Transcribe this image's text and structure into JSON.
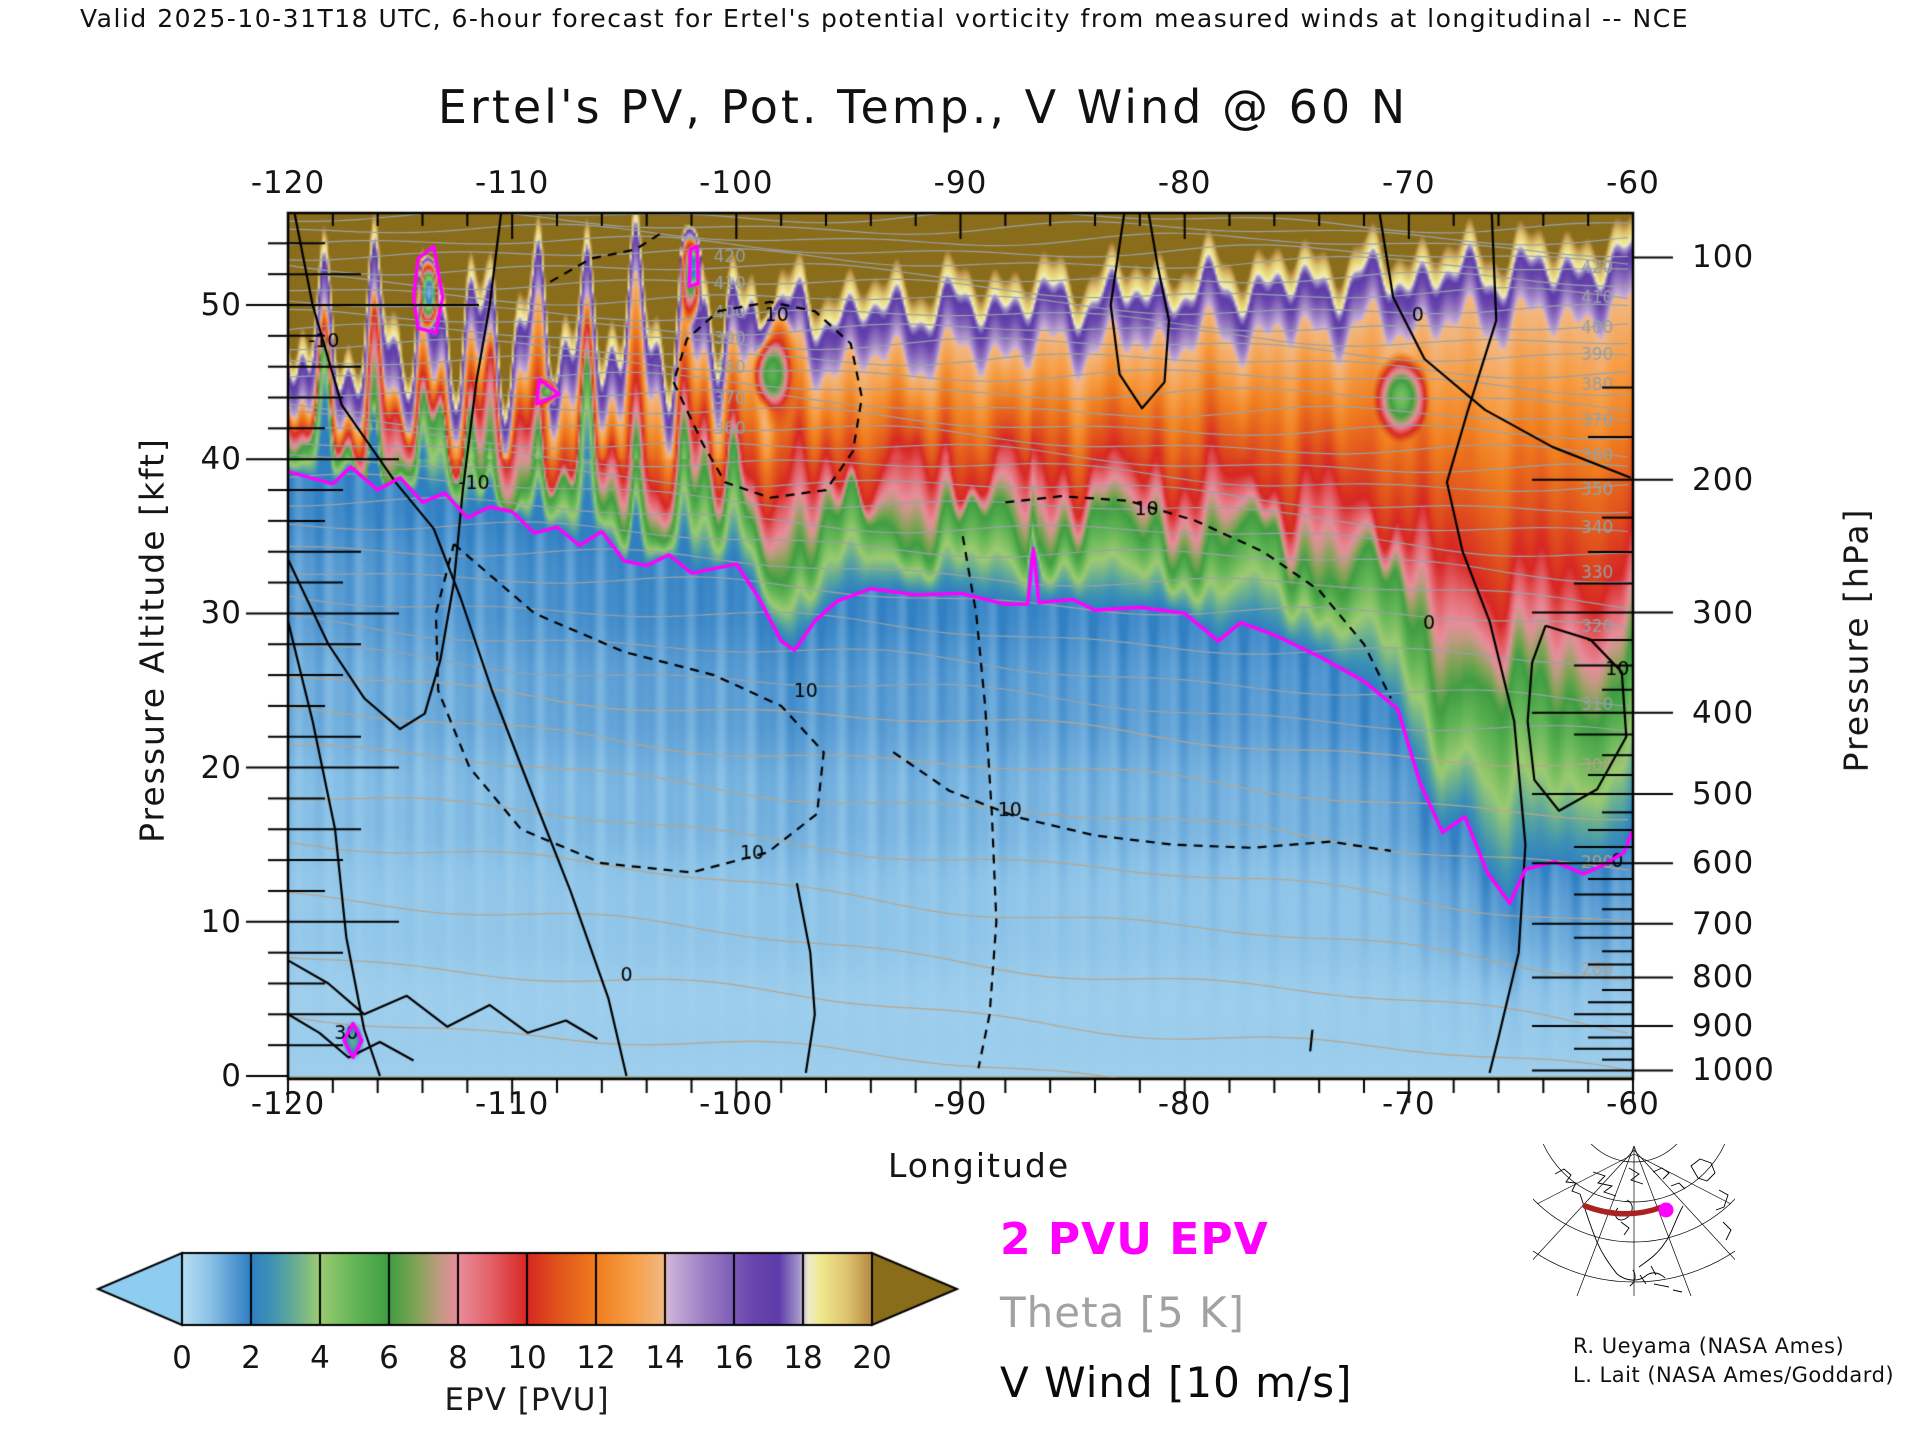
{
  "header": {
    "valid_line": "Valid 2025-10-31T18 UTC, 6-hour forecast for Ertel's potential vorticity from measured winds at longitudinal -- NCE"
  },
  "title": "Ertel's PV, Pot. Temp., V Wind @ 60 N",
  "axes": {
    "x": {
      "label": "Longitude",
      "min": -120,
      "max": -60,
      "ticks": [
        "-120",
        "-110",
        "-100",
        "-90",
        "-80",
        "-70",
        "-60"
      ],
      "tick_values": [
        -120,
        -110,
        -100,
        -90,
        -80,
        -70,
        -60
      ]
    },
    "y_left": {
      "label": "Pressure Altitude [kft]",
      "min": -0.2,
      "max": 56,
      "ticks": [
        "0",
        "10",
        "20",
        "30",
        "40",
        "50"
      ],
      "tick_values": [
        0,
        10,
        20,
        30,
        40,
        50
      ]
    },
    "y_right": {
      "label": "Pressure [hPa]",
      "ticks": [
        "100",
        "200",
        "300",
        "400",
        "500",
        "600",
        "700",
        "800",
        "900",
        "1000"
      ],
      "tick_values": [
        100,
        200,
        300,
        400,
        500,
        600,
        700,
        800,
        900,
        1000
      ]
    }
  },
  "colorbar": {
    "label": "EPV [PVU]",
    "ticks": [
      "0",
      "2",
      "4",
      "6",
      "8",
      "10",
      "12",
      "14",
      "16",
      "18",
      "20"
    ],
    "tick_values": [
      0,
      2,
      4,
      6,
      8,
      10,
      12,
      14,
      16,
      18,
      20
    ],
    "under_color": "#8ecdf0",
    "over_color": "#8a6d1a"
  },
  "legend": {
    "items": [
      {
        "text": "2 PVU EPV",
        "color": "#ff00ff",
        "bold": true
      },
      {
        "text": "Theta [5 K]",
        "color": "#a2a2a2",
        "bold": false
      },
      {
        "text": "V Wind [10 m/s]",
        "color": "#0a0a0a",
        "bold": false
      }
    ]
  },
  "credits": [
    "R. Ueyama (NASA Ames)",
    "L. Lait (NASA Ames/Goddard)"
  ],
  "chart_data": {
    "type": "heatmap",
    "subtype": "filled-contour longitude-height cross section",
    "x_range_deg": [
      -120,
      -60
    ],
    "y_range_kft": [
      -0.2,
      56
    ],
    "field": "Ertel potential vorticity [PVU]",
    "colormap_stops": [
      [
        -1,
        "#8ecdf0"
      ],
      [
        0,
        "#b7def2"
      ],
      [
        0.8,
        "#8cc3e8"
      ],
      [
        1.5,
        "#5599d2"
      ],
      [
        1.99,
        "#2f7fc2"
      ],
      [
        2.6,
        "#3f93b4"
      ],
      [
        3.2,
        "#62ab97"
      ],
      [
        4,
        "#9dcb72"
      ],
      [
        5,
        "#63b656"
      ],
      [
        6,
        "#3f9e42"
      ],
      [
        6.8,
        "#81a456"
      ],
      [
        7.5,
        "#c49a84"
      ],
      [
        8,
        "#e88d9b"
      ],
      [
        9,
        "#e45f66"
      ],
      [
        10,
        "#d82723"
      ],
      [
        10.8,
        "#e04f1d"
      ],
      [
        12,
        "#f07d1e"
      ],
      [
        13,
        "#f79d44"
      ],
      [
        14,
        "#f2b984"
      ],
      [
        14.1,
        "#cdb3da"
      ],
      [
        15.2,
        "#9a7cc4"
      ],
      [
        16.5,
        "#6a47ae"
      ],
      [
        17.3,
        "#5d3ca9"
      ],
      [
        17.9,
        "#a697cb"
      ],
      [
        18.15,
        "#efeccc"
      ],
      [
        18.5,
        "#f1e88e"
      ],
      [
        19.3,
        "#ddc26e"
      ],
      [
        19.9,
        "#bb9148"
      ],
      [
        20.3,
        "#8a6d1a"
      ],
      [
        23,
        "#8a6d1a"
      ]
    ],
    "tropopause_2pvu_kft": [
      [
        -120,
        39.2
      ],
      [
        -118,
        38.4
      ],
      [
        -117.2,
        39.5
      ],
      [
        -116,
        38.0
      ],
      [
        -115,
        38.8
      ],
      [
        -114,
        37.2
      ],
      [
        -113,
        37.8
      ],
      [
        -112,
        36.2
      ],
      [
        -111,
        36.9
      ],
      [
        -110,
        36.6
      ],
      [
        -109,
        35.2
      ],
      [
        -108,
        35.6
      ],
      [
        -107,
        34.4
      ],
      [
        -106,
        35.3
      ],
      [
        -105,
        33.4
      ],
      [
        -104,
        33.1
      ],
      [
        -103,
        33.8
      ],
      [
        -102,
        32.6
      ],
      [
        -101,
        32.9
      ],
      [
        -100,
        33.2
      ],
      [
        -99,
        31.0
      ],
      [
        -98,
        28.2
      ],
      [
        -97.4,
        27.6
      ],
      [
        -96.5,
        29.5
      ],
      [
        -95.5,
        30.8
      ],
      [
        -94,
        31.6
      ],
      [
        -92,
        31.2
      ],
      [
        -90,
        31.3
      ],
      [
        -88,
        30.6
      ],
      [
        -87.0,
        30.6
      ],
      [
        -86.75,
        34.2
      ],
      [
        -86.5,
        30.7
      ],
      [
        -85,
        30.9
      ],
      [
        -84,
        30.2
      ],
      [
        -82,
        30.4
      ],
      [
        -80,
        30.0
      ],
      [
        -78.5,
        28.2
      ],
      [
        -77.5,
        29.4
      ],
      [
        -76,
        28.6
      ],
      [
        -74,
        27.2
      ],
      [
        -72,
        25.6
      ],
      [
        -70.5,
        23.8
      ],
      [
        -69.5,
        19.0
      ],
      [
        -68.5,
        15.8
      ],
      [
        -67.5,
        16.8
      ],
      [
        -66.5,
        13.2
      ],
      [
        -65.5,
        11.2
      ],
      [
        -64.8,
        13.4
      ],
      [
        -63.5,
        13.9
      ],
      [
        -62.2,
        13.1
      ],
      [
        -61.3,
        13.7
      ],
      [
        -60.4,
        14.5
      ],
      [
        -60,
        16.0
      ]
    ],
    "magenta_closed_contours": [
      [
        [
          -114.2,
          48.5
        ],
        [
          -113.4,
          48.2
        ],
        [
          -113.1,
          50.5
        ],
        [
          -113.5,
          53.8
        ],
        [
          -114.2,
          53.0
        ],
        [
          -114.4,
          50.5
        ]
      ],
      [
        [
          -108.9,
          43.6
        ],
        [
          -107.9,
          44.2
        ],
        [
          -108.8,
          45.2
        ]
      ],
      [
        [
          -102.1,
          51.2
        ],
        [
          -101.7,
          51.4
        ],
        [
          -101.75,
          53.8
        ],
        [
          -102.05,
          53.6
        ]
      ],
      [
        [
          -117.5,
          2.3
        ],
        [
          -117.1,
          3.4
        ],
        [
          -116.7,
          2.3
        ],
        [
          -117.1,
          1.2
        ]
      ]
    ],
    "anomalies": [
      {
        "lon": -113.7,
        "kft": 50.8,
        "rlon": 0.55,
        "rkft": 2.6,
        "epv": 0.9
      },
      {
        "lon": -108.4,
        "kft": 44.4,
        "rlon": 0.5,
        "rkft": 0.9,
        "epv": 4.5
      },
      {
        "lon": -102.0,
        "kft": 52.0,
        "rlon": 0.55,
        "rkft": 3.5,
        "epv": 4.5
      },
      {
        "lon": -101.9,
        "kft": 52.5,
        "rlon": 0.28,
        "rkft": 1.5,
        "epv": 1.6
      },
      {
        "lon": -117.1,
        "kft": 2.3,
        "rlon": 0.5,
        "rkft": 1.3,
        "epv": 3.2
      },
      {
        "lon": -98.2,
        "kft": 46.0,
        "rlon": 1.0,
        "rkft": 4.5,
        "epv": 9.3
      },
      {
        "lon": -98.4,
        "kft": 45.5,
        "rlon": 0.9,
        "rkft": 2.4,
        "epv": 5.2
      },
      {
        "lon": -86.7,
        "kft": 32.5,
        "rlon": 0.35,
        "rkft": 2.0,
        "epv": 1.4
      },
      {
        "lon": -70.3,
        "kft": 44.0,
        "rlon": 1.3,
        "rkft": 3.0,
        "epv": 4.6
      }
    ],
    "theta_contours": {
      "interval_K": 5,
      "labeled_levels": [
        420,
        410,
        400,
        390,
        380,
        370,
        360,
        350,
        340,
        330,
        320,
        310,
        300,
        290,
        280
      ],
      "kft_left_right": {
        "440": [
          56.3,
          55.1
        ],
        "430": [
          54.9,
          53.7
        ],
        "420": [
          53.5,
          52.3
        ],
        "410": [
          51.8,
          50.4
        ],
        "400": [
          50.0,
          48.4
        ],
        "390": [
          48.3,
          46.7
        ],
        "380": [
          46.5,
          44.7
        ],
        "370": [
          44.6,
          42.4
        ],
        "360": [
          42.8,
          40.1
        ],
        "350": [
          40.9,
          37.9
        ],
        "340": [
          38.7,
          35.4
        ],
        "330": [
          36.0,
          32.5
        ],
        "320": [
          33.0,
          29.0
        ],
        "310": [
          29.5,
          23.9
        ],
        "300": [
          25.8,
          19.9
        ],
        "290": [
          21.3,
          13.6
        ],
        "280": [
          15.5,
          6.6
        ],
        "275": [
          12.0,
          3.2
        ],
        "270": [
          8.0,
          0.2
        ],
        "265": [
          4.0,
          -2.5
        ]
      },
      "label_lons": [
        -100.3,
        -61.6
      ]
    },
    "wind_contours": {
      "solid": [
        [
          [
            -119.7,
            55.9
          ],
          [
            -118.9,
            50
          ],
          [
            -117.6,
            43.5
          ],
          [
            -115.2,
            38.5
          ],
          [
            -113.5,
            35.5
          ],
          [
            -112.3,
            31
          ],
          [
            -110.9,
            25
          ],
          [
            -109.3,
            19
          ],
          [
            -107.4,
            12
          ],
          [
            -105.7,
            5
          ],
          [
            -104.9,
            0
          ]
        ],
        [
          [
            -120,
            33.5
          ],
          [
            -118.2,
            28
          ],
          [
            -116.6,
            24.5
          ],
          [
            -115,
            22.5
          ],
          [
            -113.9,
            23.5
          ],
          [
            -113.2,
            27
          ],
          [
            -112.6,
            32
          ],
          [
            -112.2,
            38
          ],
          [
            -111.6,
            45
          ],
          [
            -111,
            50
          ],
          [
            -110.5,
            55.9
          ]
        ],
        [
          [
            -120,
            29.5
          ],
          [
            -118.9,
            23
          ],
          [
            -117.9,
            16
          ],
          [
            -117.4,
            9
          ],
          [
            -116.6,
            3
          ],
          [
            -115.9,
            0
          ]
        ],
        [
          [
            -120,
            7.5
          ],
          [
            -118.2,
            6
          ],
          [
            -116.6,
            4
          ],
          [
            -114.7,
            5.2
          ],
          [
            -112.9,
            3.2
          ],
          [
            -111,
            4.6
          ],
          [
            -109.3,
            2.8
          ],
          [
            -107.6,
            3.6
          ],
          [
            -106.2,
            2.4
          ]
        ],
        [
          [
            -120,
            4
          ],
          [
            -118.6,
            2.8
          ],
          [
            -117.3,
            1.2
          ],
          [
            -115.9,
            2.2
          ],
          [
            -114.4,
            1
          ]
        ],
        [
          [
            -97.3,
            12.5
          ],
          [
            -96.7,
            8
          ],
          [
            -96.5,
            4
          ],
          [
            -96.9,
            0.2
          ]
        ],
        [
          [
            -82.7,
            55.9
          ],
          [
            -83.3,
            50
          ],
          [
            -82.9,
            45.5
          ],
          [
            -81.9,
            43.3
          ],
          [
            -80.9,
            45
          ],
          [
            -80.7,
            49
          ],
          [
            -81.2,
            52.5
          ],
          [
            -81.6,
            55.9
          ]
        ],
        [
          [
            -71.3,
            55.9
          ],
          [
            -70.7,
            50.5
          ],
          [
            -69.3,
            46.5
          ],
          [
            -66.6,
            43.2
          ],
          [
            -63.6,
            40.8
          ],
          [
            -60.1,
            38.8
          ]
        ],
        [
          [
            -66.3,
            55.9
          ],
          [
            -66.1,
            49
          ],
          [
            -67.4,
            43
          ],
          [
            -68.3,
            38.5
          ],
          [
            -67.6,
            34
          ],
          [
            -66.4,
            29.5
          ],
          [
            -65.3,
            23
          ],
          [
            -64.8,
            15
          ],
          [
            -65.1,
            8
          ],
          [
            -66,
            2.5
          ],
          [
            -66.4,
            0.2
          ]
        ],
        [
          [
            -63.9,
            29.2
          ],
          [
            -61.9,
            28.3
          ],
          [
            -60.5,
            26.2
          ],
          [
            -60.3,
            22
          ],
          [
            -61.6,
            18.6
          ],
          [
            -63.3,
            17.2
          ],
          [
            -64.4,
            19.2
          ],
          [
            -64.7,
            23
          ],
          [
            -64.5,
            26.8
          ],
          [
            -63.9,
            29.2
          ]
        ],
        [
          [
            -74.3,
            3.0
          ],
          [
            -74.4,
            1.6
          ]
        ]
      ],
      "dashed": [
        [
          [
            -112.6,
            34.5
          ],
          [
            -109,
            30
          ],
          [
            -105,
            27.5
          ],
          [
            -101,
            26
          ],
          [
            -98,
            24
          ],
          [
            -96.1,
            21
          ],
          [
            -96.4,
            17
          ],
          [
            -98.6,
            14.5
          ],
          [
            -102,
            13.2
          ],
          [
            -106,
            13.8
          ],
          [
            -109.6,
            16
          ],
          [
            -111.9,
            20
          ],
          [
            -113.3,
            25
          ],
          [
            -113.4,
            30
          ],
          [
            -112.6,
            34.5
          ]
        ],
        [
          [
            -89.9,
            35
          ],
          [
            -89.3,
            30
          ],
          [
            -88.9,
            24
          ],
          [
            -88.6,
            17
          ],
          [
            -88.4,
            10
          ],
          [
            -88.7,
            4
          ],
          [
            -89.2,
            0.5
          ]
        ],
        [
          [
            -93,
            21
          ],
          [
            -90.5,
            18.5
          ],
          [
            -87.5,
            16.8
          ],
          [
            -84,
            15.6
          ],
          [
            -80.5,
            15
          ],
          [
            -77,
            14.8
          ],
          [
            -73.5,
            15.2
          ],
          [
            -70.8,
            14.6
          ]
        ],
        [
          [
            -88,
            37.2
          ],
          [
            -85.5,
            37.6
          ],
          [
            -82.5,
            37.3
          ],
          [
            -79.5,
            36
          ],
          [
            -76.5,
            34
          ],
          [
            -74,
            31.5
          ],
          [
            -72,
            28
          ],
          [
            -70.8,
            24.5
          ]
        ],
        [
          [
            -102.8,
            45
          ],
          [
            -101.5,
            41
          ],
          [
            -100.5,
            38.5
          ],
          [
            -98.5,
            37.5
          ],
          [
            -96,
            38
          ],
          [
            -94.8,
            40.5
          ],
          [
            -94.4,
            44
          ],
          [
            -94.9,
            47.5
          ],
          [
            -96.5,
            49.6
          ],
          [
            -98.5,
            50.2
          ],
          [
            -100.8,
            49.6
          ],
          [
            -102.2,
            47.8
          ],
          [
            -102.8,
            45
          ]
        ],
        [
          [
            -108.3,
            51.5
          ],
          [
            -106.5,
            53
          ],
          [
            -104.5,
            53.6
          ],
          [
            -103.2,
            54.8
          ]
        ]
      ],
      "labels": [
        {
          "t": "-10",
          "lon": -118.4,
          "kft": 47.6
        },
        {
          "t": "-10",
          "lon": -111.7,
          "kft": 38.4
        },
        {
          "t": "30",
          "lon": -117.4,
          "kft": 2.7
        },
        {
          "t": "0",
          "lon": -104.9,
          "kft": 6.5
        },
        {
          "t": "10",
          "lon": -99.3,
          "kft": 14.4
        },
        {
          "t": "10",
          "lon": -96.9,
          "kft": 24.9
        },
        {
          "t": "10",
          "lon": -87.8,
          "kft": 17.2
        },
        {
          "t": "10",
          "lon": -81.7,
          "kft": 36.7
        },
        {
          "t": "10",
          "lon": -98.2,
          "kft": 49.3
        },
        {
          "t": "0",
          "lon": -69.1,
          "kft": 29.3
        },
        {
          "t": "0",
          "lon": -69.6,
          "kft": 49.3
        },
        {
          "t": "0",
          "lon": -60.7,
          "kft": 13.9
        },
        {
          "t": "10",
          "lon": -60.7,
          "kft": 26.3
        }
      ]
    }
  }
}
